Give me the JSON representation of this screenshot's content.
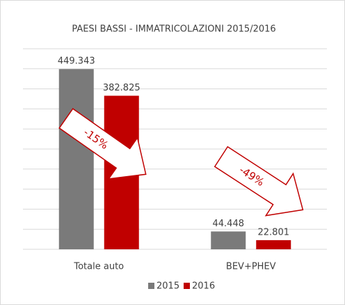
{
  "chart_data": {
    "type": "bar",
    "title": "PAESI BASSI - IMMATRICOLAZIONI 2015/2016",
    "categories": [
      "Totale auto",
      "BEV+PHEV"
    ],
    "series": [
      {
        "name": "2015",
        "color": "#7a7a7a",
        "values": [
          449343,
          44448
        ],
        "value_labels": [
          "449.343",
          "44.448"
        ]
      },
      {
        "name": "2016",
        "color": "#c00000",
        "values": [
          382825,
          22801
        ],
        "value_labels": [
          "382.825",
          "22.801"
        ]
      }
    ],
    "ylim": [
      0,
      500000
    ],
    "yticks": [
      0,
      50000,
      100000,
      150000,
      200000,
      250000,
      300000,
      350000,
      400000,
      450000,
      500000
    ],
    "grid": true,
    "legend": "bottom",
    "annotations": [
      {
        "text": "-15%"
      },
      {
        "text": "-49%"
      }
    ]
  }
}
